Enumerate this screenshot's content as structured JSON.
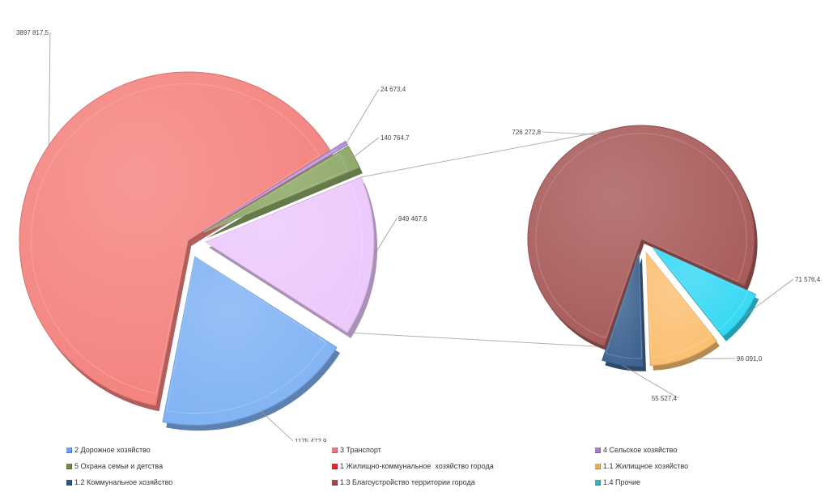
{
  "chart_data": {
    "type": "pie",
    "subtype": "bar-of-pie (pie of pie), exploded, 3D bevel",
    "main_pie": {
      "slices": [
        {
          "name": "3 Транспорт",
          "value": 3897817.5,
          "label": "3897 817,5",
          "color": "#f4827e"
        },
        {
          "name": "4 Сельское хозяйство",
          "value": 24673.4,
          "label": "24 673,4",
          "color": "#b28ed8"
        },
        {
          "name": "5 Охрана семьи и детства",
          "value": 140764.7,
          "label": "140 764,7",
          "color": "#8ea868"
        },
        {
          "name": "Other (1 Жилищно-коммунальное  хозяйство города)",
          "value": 949467.6,
          "label": "949 467,6",
          "color": "#ecc8fb"
        },
        {
          "name": "2 Дорожное хозяйство",
          "value": 1175472.9,
          "label": "1175 472,9",
          "color": "#80b2f4"
        }
      ]
    },
    "secondary_pie": {
      "slices": [
        {
          "name": "1.3 Благоустройство территории города",
          "value": 726272.8,
          "label": "726 272,8",
          "color": "#a85a5a"
        },
        {
          "name": "1.4 Прочие",
          "value": 71576.4,
          "label": "71 576,4",
          "color": "#34d8f4"
        },
        {
          "name": "1.1 Жилищное хозяйство",
          "value": 96091.0,
          "label": "96 091,0",
          "color": "#fbbf72"
        },
        {
          "name": "1.2 Коммунальное хозяйство",
          "value": 55527.4,
          "label": "55 527,4",
          "color": "#3e6490"
        }
      ]
    },
    "legend": [
      {
        "label": "2 Дорожное хозяйство",
        "color": "#6fa2e6"
      },
      {
        "label": "3 Транспорт",
        "color": "#e87a76"
      },
      {
        "label": "4 Сельское хозяйство",
        "color": "#a57ecc"
      },
      {
        "label": "5 Охрана семьи и детства",
        "color": "#6e8a44"
      },
      {
        "label": "1 Жилищно-коммунальное  хозяйство города",
        "color": "#e8262a"
      },
      {
        "label": "1.1 Жилищное хозяйство",
        "color": "#f5a84c"
      },
      {
        "label": "1.2 Коммунальное хозяйство",
        "color": "#2f5584"
      },
      {
        "label": "1.3 Благоустройство территории города",
        "color": "#a04a4a"
      },
      {
        "label": "1.4 Прочие",
        "color": "#2ab8c4"
      }
    ],
    "legend_placement": "bottom"
  }
}
